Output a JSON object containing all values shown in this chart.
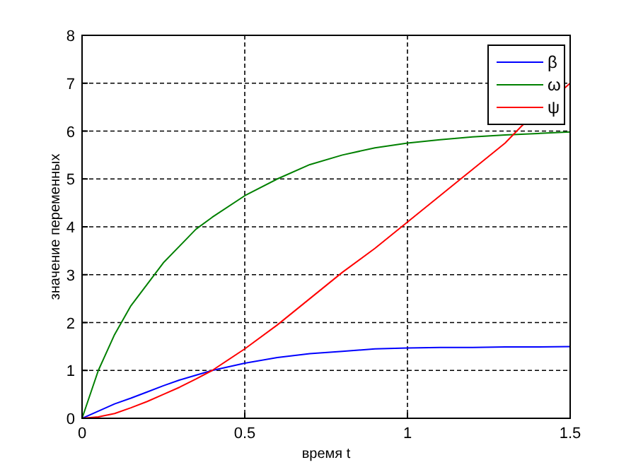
{
  "chart_data": {
    "type": "line",
    "xlabel": "время t",
    "ylabel": "значение переменных",
    "x": [
      0,
      0.05,
      0.1,
      0.15,
      0.2,
      0.25,
      0.3,
      0.35,
      0.4,
      0.5,
      0.6,
      0.7,
      0.8,
      0.9,
      1.0,
      1.1,
      1.2,
      1.3,
      1.4,
      1.5
    ],
    "series": [
      {
        "name": "β",
        "color": "#0000ff",
        "values": [
          0,
          0.15,
          0.3,
          0.42,
          0.55,
          0.68,
          0.8,
          0.9,
          1.0,
          1.15,
          1.27,
          1.35,
          1.4,
          1.45,
          1.47,
          1.48,
          1.48,
          1.49,
          1.49,
          1.5
        ]
      },
      {
        "name": "ω",
        "color": "#008000",
        "values": [
          0,
          1.0,
          1.75,
          2.35,
          2.8,
          3.25,
          3.6,
          3.95,
          4.2,
          4.65,
          5.0,
          5.3,
          5.5,
          5.65,
          5.75,
          5.82,
          5.88,
          5.92,
          5.95,
          5.98
        ]
      },
      {
        "name": "ψ",
        "color": "#ff0000",
        "x": [
          0,
          0.05,
          0.1,
          0.15,
          0.2,
          0.25,
          0.3,
          0.35,
          0.4,
          0.5,
          0.6,
          0.7,
          0.8,
          0.9,
          1.0,
          1.1,
          1.2,
          1.3,
          1.35,
          1.5
        ],
        "values": [
          0,
          0.03,
          0.1,
          0.22,
          0.35,
          0.5,
          0.65,
          0.82,
          1.0,
          1.45,
          1.95,
          2.5,
          3.05,
          3.55,
          4.1,
          4.65,
          5.2,
          5.75,
          6.1,
          7.0
        ]
      }
    ],
    "xlim": [
      0,
      1.5
    ],
    "xticks": [
      0,
      {
        "value": 0.5,
        "label": "0.5"
      },
      1,
      {
        "value": 1.5,
        "label": "1.5"
      }
    ],
    "ylim": [
      0,
      8
    ],
    "yticks": [
      0,
      1,
      2,
      3,
      4,
      5,
      6,
      7,
      8
    ],
    "grid": true,
    "legend": "top right",
    "marker": "none",
    "line_style": "solid"
  }
}
